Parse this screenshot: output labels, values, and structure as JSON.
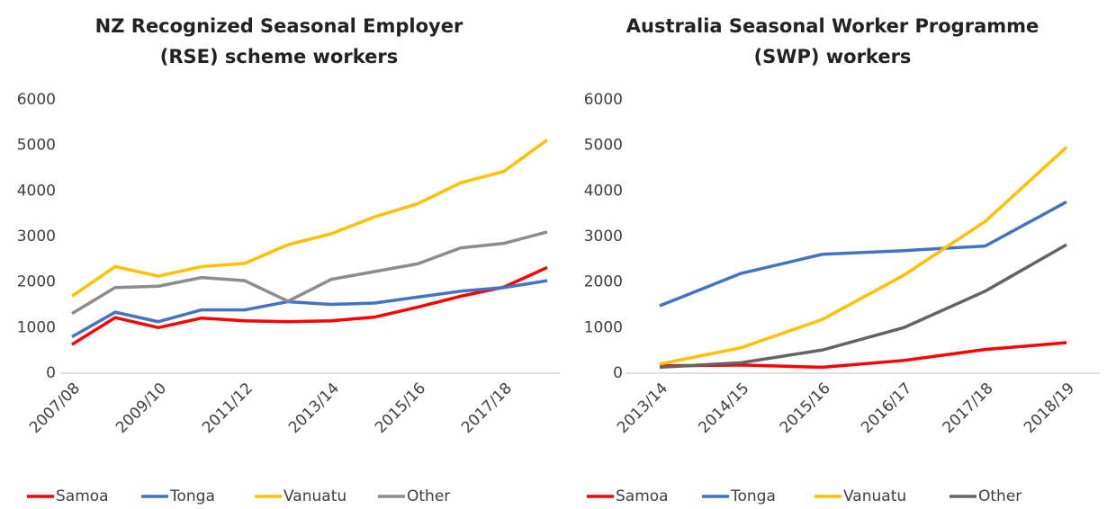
{
  "chart_data": [
    {
      "type": "line",
      "title": [
        "NZ Recognized Seasonal Employer",
        "(RSE) scheme workers"
      ],
      "categories": [
        "2007/08",
        null,
        "2009/10",
        null,
        "2011/12",
        null,
        "2013/14",
        null,
        "2015/16",
        null,
        "2017/18",
        null
      ],
      "ylim": [
        0,
        6000
      ],
      "yticks": [
        0,
        1000,
        2000,
        3000,
        4000,
        5000,
        6000
      ],
      "grid": false,
      "legend": "bottom",
      "series": [
        {
          "name": "Samoa",
          "color": "#ff0000",
          "values": [
            630,
            1220,
            1000,
            1210,
            1150,
            1130,
            1150,
            1230,
            1450,
            1690,
            1890,
            2320
          ]
        },
        {
          "name": "Tonga",
          "color": "#4472c4",
          "values": [
            800,
            1340,
            1130,
            1390,
            1390,
            1570,
            1510,
            1540,
            1670,
            1800,
            1880,
            2030
          ]
        },
        {
          "name": "Vanuatu",
          "color": "#ffc000",
          "values": [
            1690,
            2340,
            2130,
            2340,
            2410,
            2820,
            3060,
            3430,
            3720,
            4180,
            4430,
            5120
          ]
        },
        {
          "name": "Other",
          "color": "#8c8c8c",
          "values": [
            1310,
            1880,
            1910,
            2100,
            2030,
            1580,
            2060,
            2230,
            2400,
            2750,
            2850,
            3100
          ]
        }
      ]
    },
    {
      "type": "line",
      "title": [
        "Australia Seasonal Worker Programme",
        "(SWP) workers"
      ],
      "categories": [
        "2013/14",
        "2014/15",
        "2015/16",
        "2016/17",
        "2017/18",
        "2018/19"
      ],
      "ylim": [
        0,
        6000
      ],
      "yticks": [
        0,
        1000,
        2000,
        3000,
        4000,
        5000,
        6000
      ],
      "grid": false,
      "legend": "bottom",
      "series": [
        {
          "name": "Samoa",
          "color": "#ff0000",
          "values": [
            160,
            180,
            130,
            280,
            520,
            670
          ]
        },
        {
          "name": "Tonga",
          "color": "#4472c4",
          "values": [
            1480,
            2190,
            2610,
            2690,
            2790,
            3760
          ]
        },
        {
          "name": "Vanuatu",
          "color": "#ffc000",
          "values": [
            200,
            560,
            1180,
            2150,
            3330,
            4960
          ]
        },
        {
          "name": "Other",
          "color": "#636363",
          "values": [
            130,
            230,
            510,
            1000,
            1800,
            2820
          ]
        }
      ]
    }
  ]
}
